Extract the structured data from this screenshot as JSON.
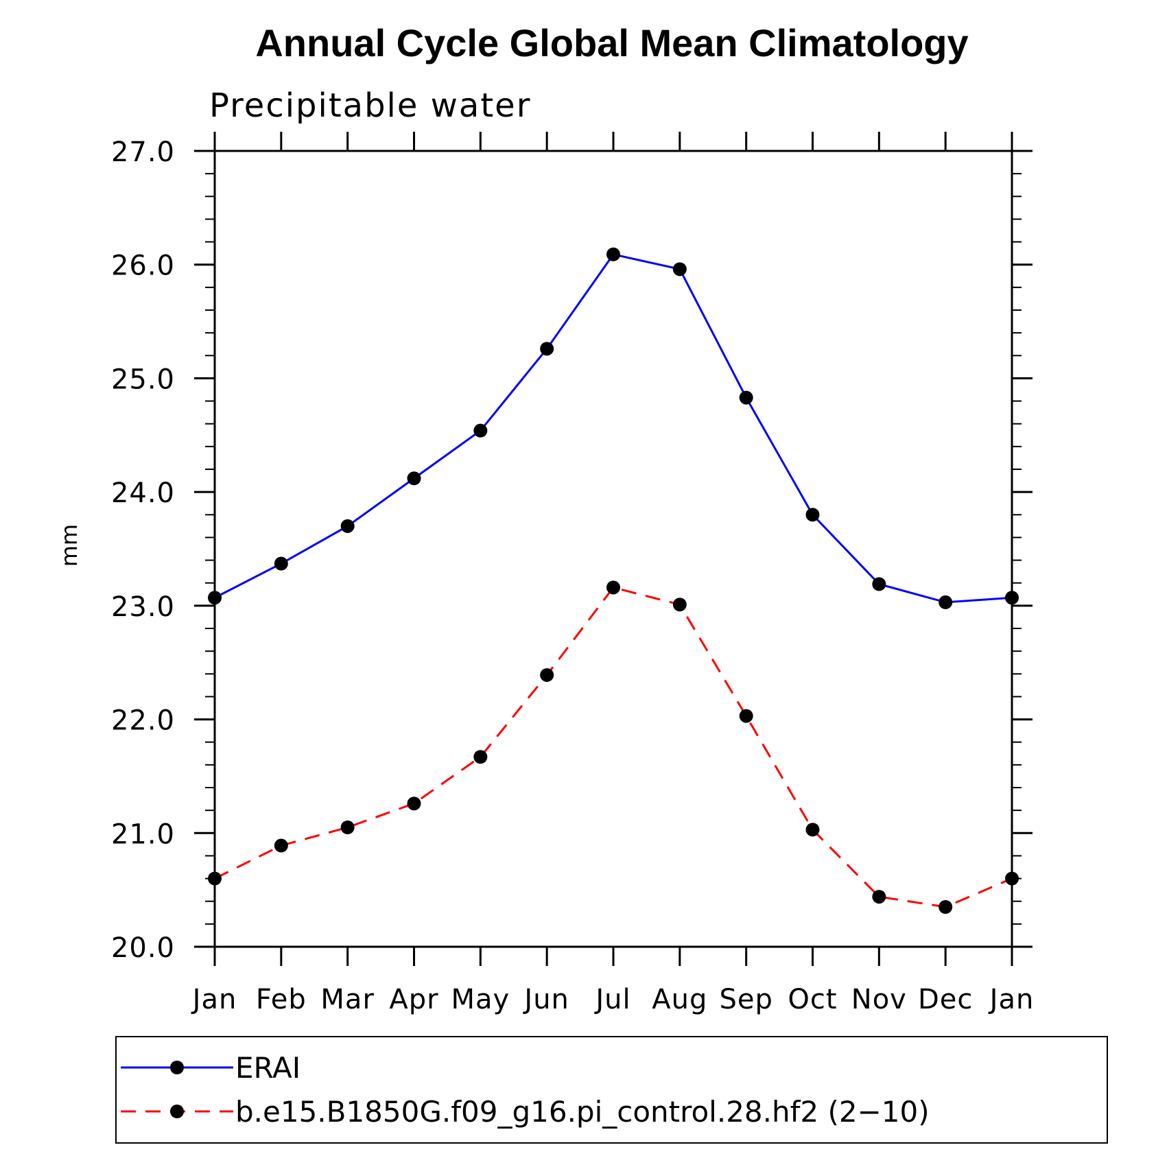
{
  "chart_data": {
    "type": "line",
    "title": "Annual Cycle Global Mean Climatology",
    "subtitle": "Precipitable water",
    "xlabel": "",
    "ylabel": "mm",
    "categories": [
      "Jan",
      "Feb",
      "Mar",
      "Apr",
      "May",
      "Jun",
      "Jul",
      "Aug",
      "Sep",
      "Oct",
      "Nov",
      "Dec",
      "Jan"
    ],
    "ylim": [
      20.0,
      27.0
    ],
    "yticks": [
      "20.0",
      "21.0",
      "22.0",
      "23.0",
      "24.0",
      "25.0",
      "26.0",
      "27.0"
    ],
    "series": [
      {
        "name": "ERAI",
        "color": "#0000ff",
        "dash": "solid",
        "marker": "circle",
        "values": [
          23.07,
          23.37,
          23.7,
          24.12,
          24.54,
          25.26,
          26.09,
          25.96,
          24.83,
          23.8,
          23.19,
          23.03,
          23.07
        ]
      },
      {
        "name": "b.e15.B1850G.f09_g16.pi_control.28.hf2 (2−10)",
        "color": "#ff0000",
        "dash": "dashed",
        "marker": "circle",
        "values": [
          20.6,
          20.89,
          21.05,
          21.26,
          21.67,
          22.39,
          23.16,
          23.01,
          22.03,
          21.03,
          20.44,
          20.35,
          20.6
        ]
      }
    ],
    "legend_position": "bottom",
    "grid": false
  }
}
